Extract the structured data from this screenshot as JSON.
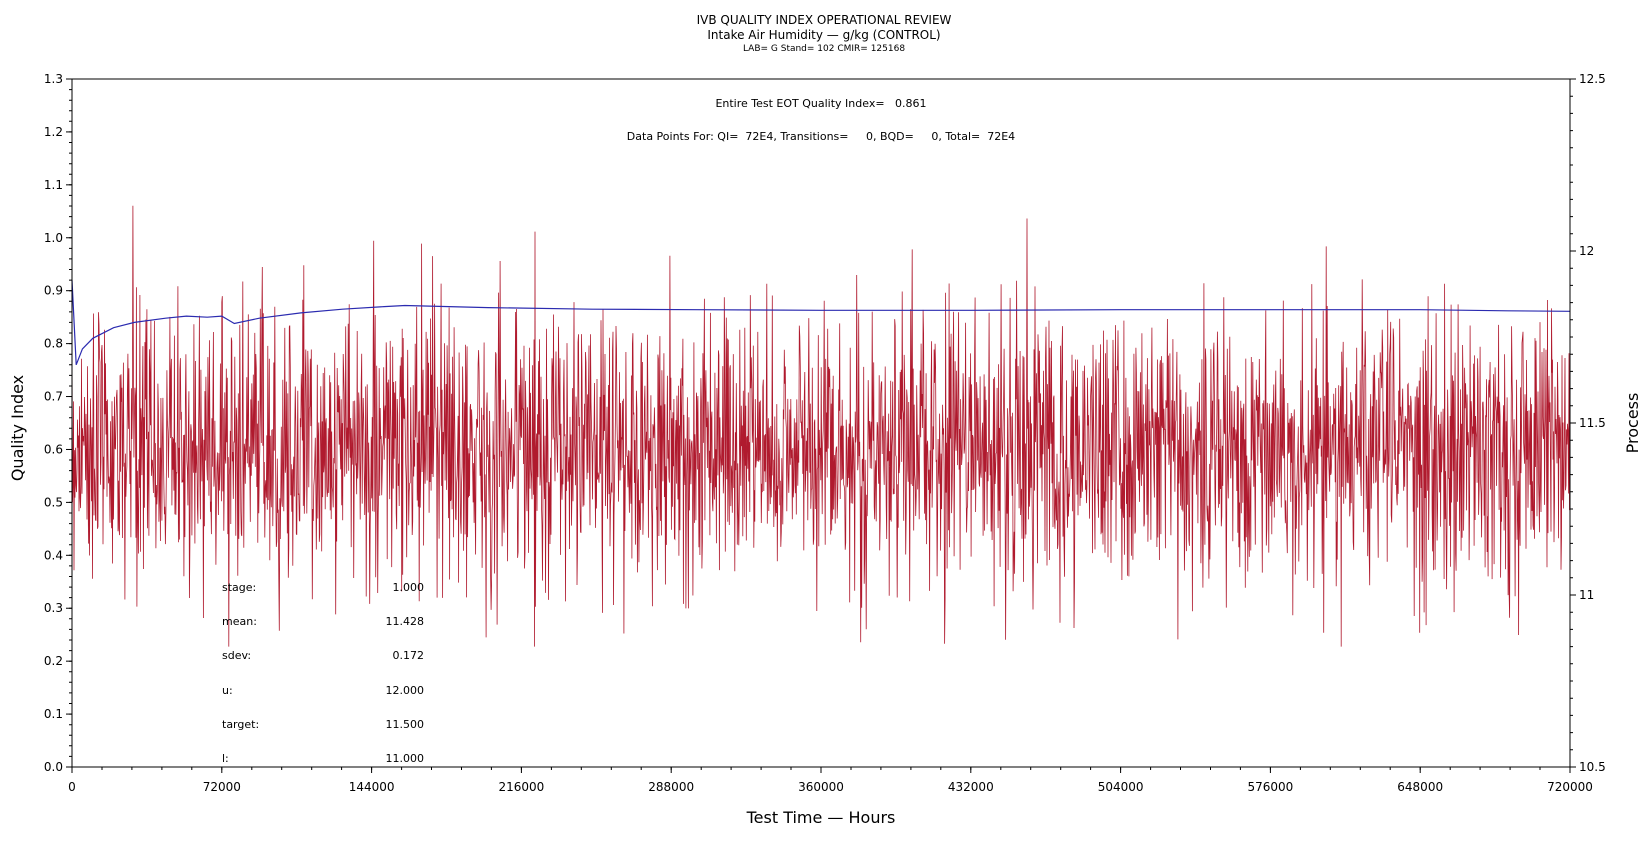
{
  "header": {
    "title": "IVB QUALITY INDEX OPERATIONAL REVIEW",
    "subtitle": "Intake Air Humidity — g/kg (CONTROL)",
    "info": "LAB= G Stand= 102 CMIR= 125168"
  },
  "annotations": {
    "eot": "Entire Test EOT Quality Index=   0.861",
    "datapoints": "Data Points For: QI=  72E4, Transitions=     0, BQD=     0, Total=  72E4"
  },
  "stats": [
    {
      "label": "stage:",
      "value": "1.000"
    },
    {
      "label": "mean:",
      "value": "11.428"
    },
    {
      "label": "sdev:",
      "value": "0.172"
    },
    {
      "label": "u:",
      "value": "12.000"
    },
    {
      "label": "target:",
      "value": "11.500"
    },
    {
      "label": "l:",
      "value": "11.000"
    }
  ],
  "chart_data": {
    "type": "line",
    "xlabel": "Test Time — Hours",
    "ylabel": "Quality Index",
    "y2label": "Process",
    "xlim": [
      0,
      720000
    ],
    "ylim": [
      0,
      1.3
    ],
    "y2lim": [
      10.5,
      12.5
    ],
    "x_ticks": [
      "0",
      "72000",
      "144000",
      "216000",
      "288000",
      "360000",
      "432000",
      "504000",
      "576000",
      "648000",
      "720000"
    ],
    "y_ticks": [
      "0.0",
      "0.1",
      "0.2",
      "0.3",
      "0.4",
      "0.5",
      "0.6",
      "0.7",
      "0.8",
      "0.9",
      "1.0",
      "1.1",
      "1.2",
      "1.3"
    ],
    "y2_ticks": [
      "10.5",
      "11",
      "11.5",
      "12",
      "12.5"
    ],
    "series": [
      {
        "color": "#b01a2e",
        "axis": "right",
        "mean": 11.43,
        "sdev": 0.172,
        "max": 12.15,
        "min": 10.85
      },
      {
        "color": "#2b2bb0",
        "axis": "left",
        "x": [
          0,
          2000,
          5000,
          10000,
          20000,
          30000,
          45000,
          55000,
          65000,
          72000,
          78000,
          90000,
          110000,
          130000,
          150000,
          160000,
          200000,
          250000,
          300000,
          360000,
          432000,
          504000,
          576000,
          648000,
          690000,
          720000
        ],
        "y": [
          0.92,
          0.76,
          0.79,
          0.81,
          0.83,
          0.84,
          0.848,
          0.852,
          0.85,
          0.852,
          0.838,
          0.848,
          0.858,
          0.865,
          0.87,
          0.872,
          0.868,
          0.865,
          0.864,
          0.863,
          0.863,
          0.864,
          0.864,
          0.864,
          0.862,
          0.861
        ]
      }
    ]
  }
}
